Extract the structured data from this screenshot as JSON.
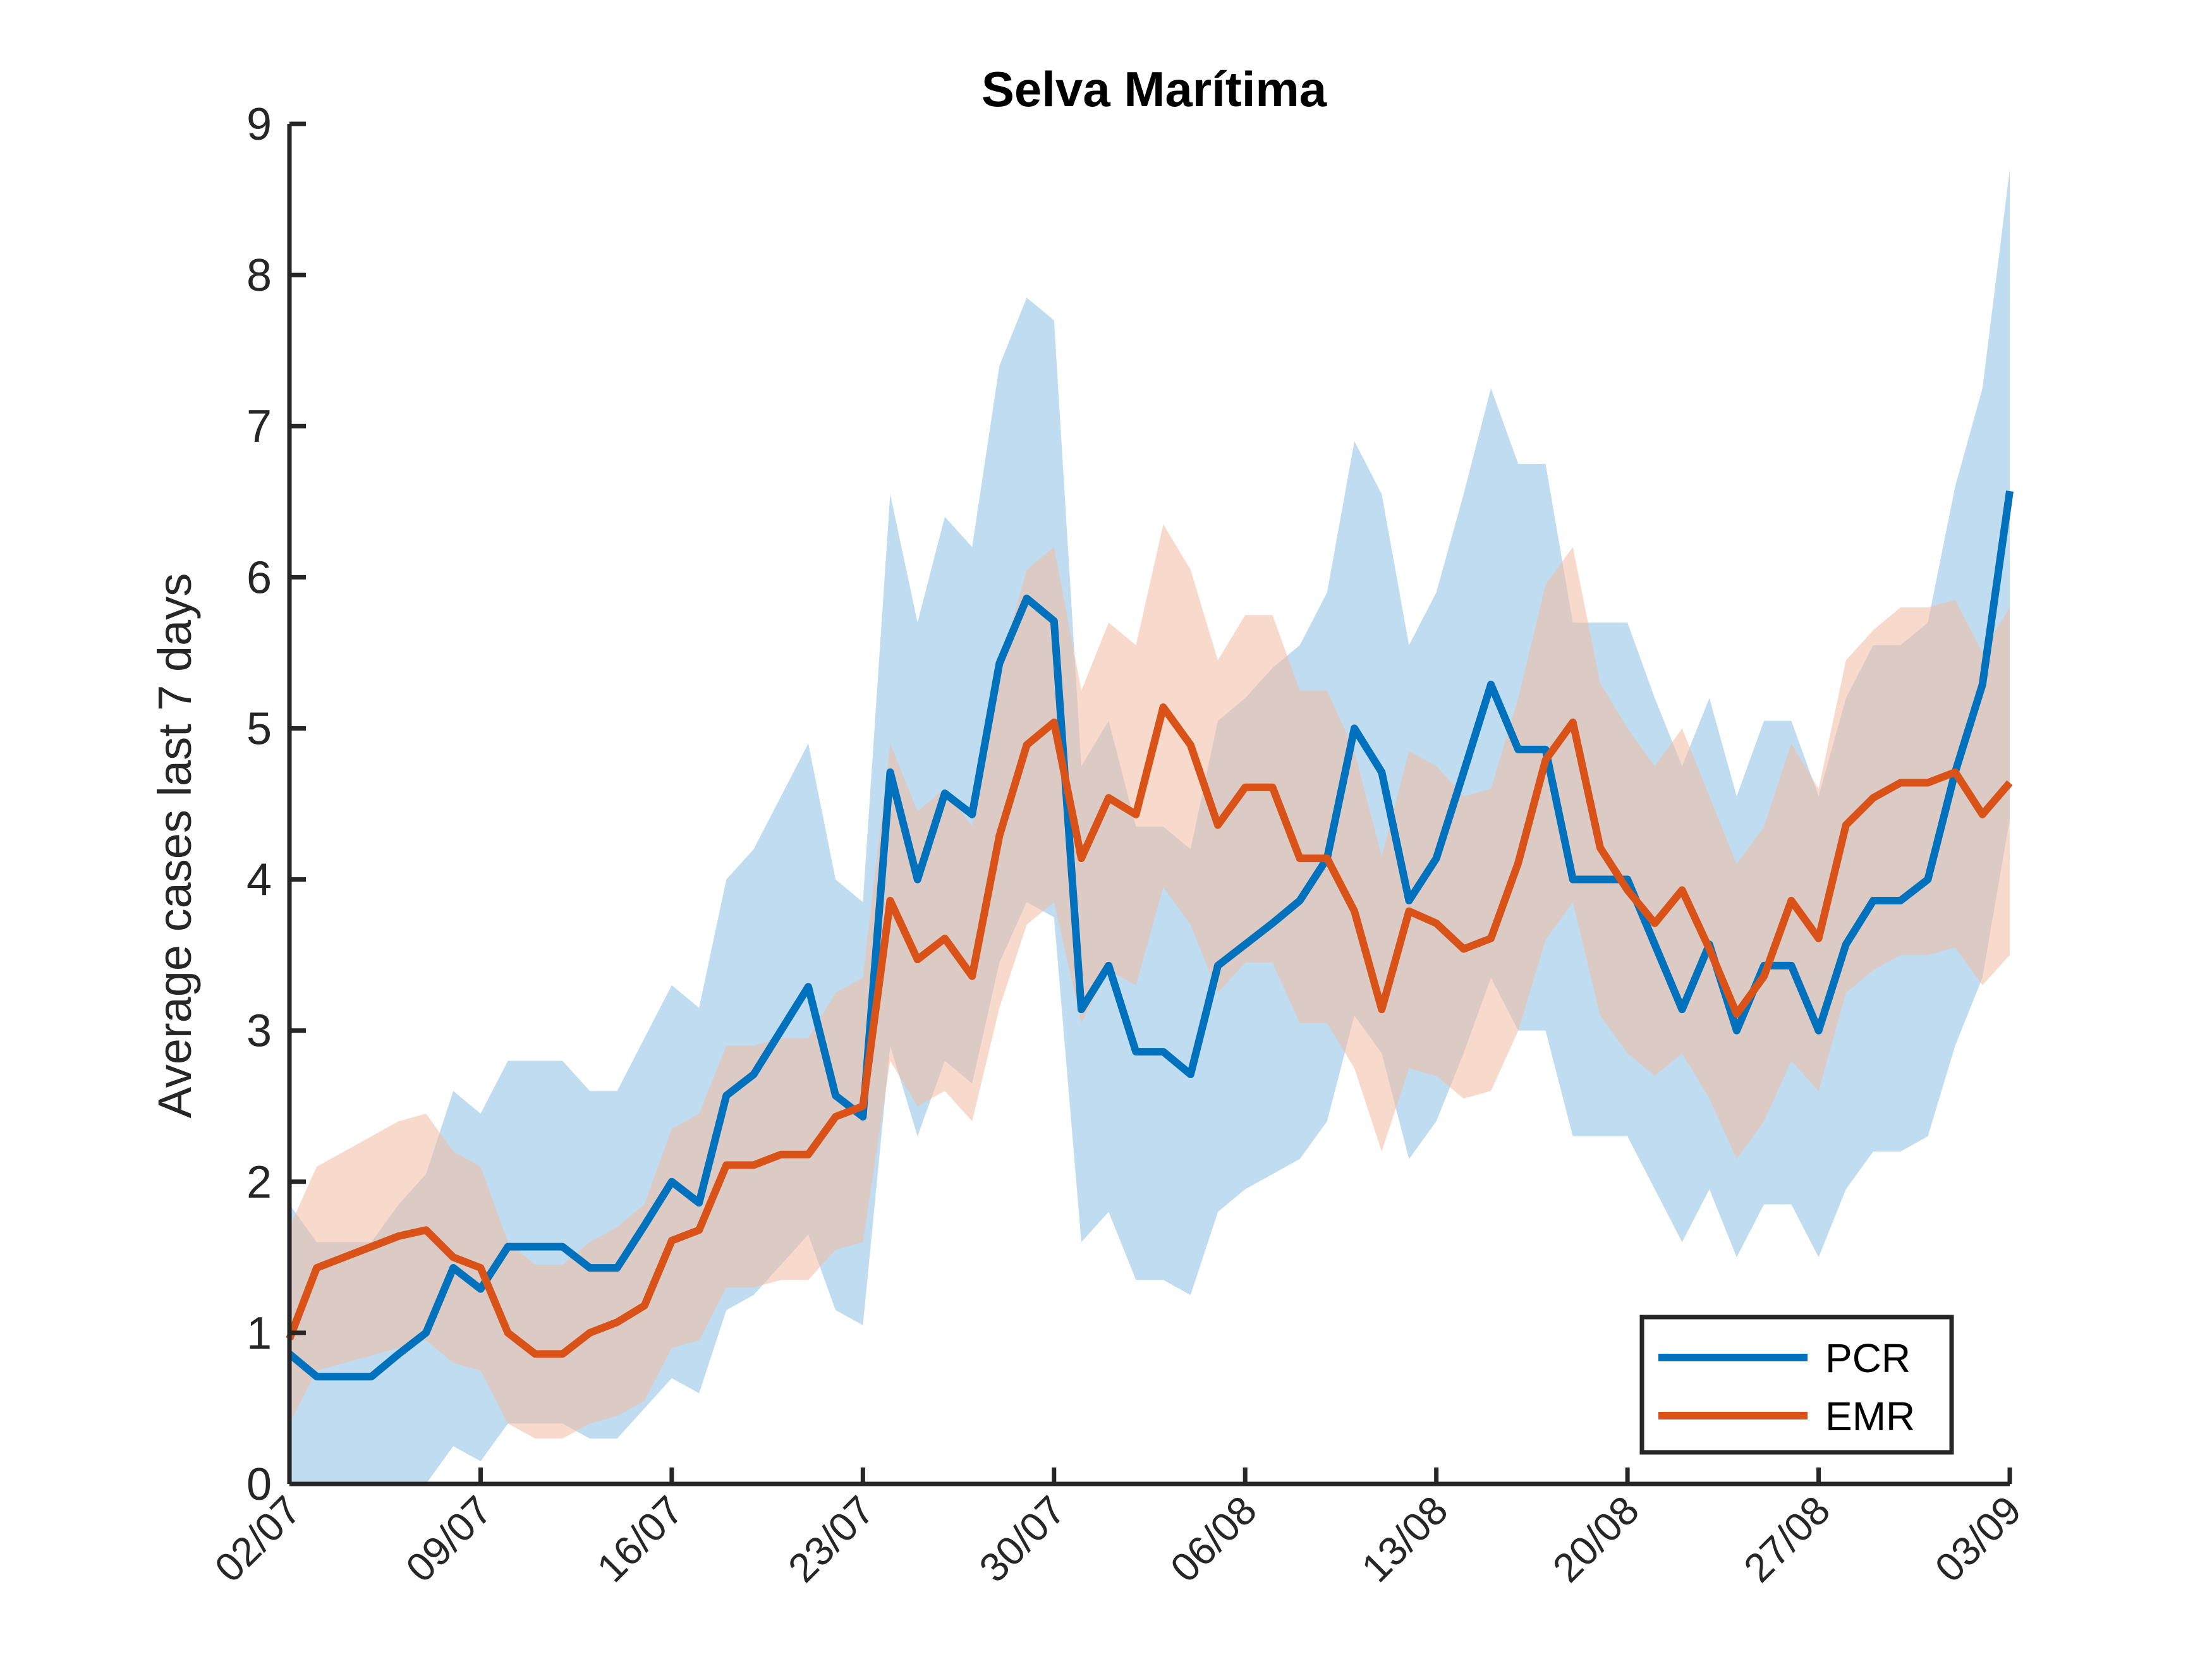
{
  "chart_data": {
    "type": "line",
    "title": "Selva Marítima",
    "xlabel": "",
    "ylabel": "Average cases last 7 days",
    "ylim": [
      0,
      9
    ],
    "yticks": [
      "0",
      "1",
      "2",
      "3",
      "4",
      "5",
      "6",
      "7",
      "8",
      "9"
    ],
    "x_range_days": [
      0,
      63
    ],
    "xticks": [
      {
        "label": "02/07",
        "day": 0
      },
      {
        "label": "09/07",
        "day": 7
      },
      {
        "label": "16/07",
        "day": 14
      },
      {
        "label": "23/07",
        "day": 21
      },
      {
        "label": "30/07",
        "day": 28
      },
      {
        "label": "06/08",
        "day": 35
      },
      {
        "label": "13/08",
        "day": 42
      },
      {
        "label": "20/08",
        "day": 49
      },
      {
        "label": "27/08",
        "day": 56
      },
      {
        "label": "03/09",
        "day": 63
      }
    ],
    "legend_position": "bottom-right",
    "grid": false,
    "series": [
      {
        "name": "PCR",
        "color": "#0072BD",
        "band_color": "#8DC0E3",
        "x": [
          0,
          1,
          2,
          3,
          4,
          5,
          6,
          7,
          8,
          9,
          10,
          11,
          12,
          13,
          14,
          15,
          16,
          17,
          18,
          19,
          20,
          21,
          22,
          23,
          24,
          25,
          26,
          27,
          28,
          29,
          30,
          31,
          32,
          33,
          34,
          35,
          36,
          37,
          38,
          39,
          40,
          41,
          42,
          43,
          44,
          45,
          46,
          47,
          48,
          49,
          50,
          51,
          52,
          53,
          54,
          55,
          56,
          57,
          58,
          59,
          60,
          61,
          62,
          63
        ],
        "values": [
          0.86,
          0.71,
          0.71,
          0.71,
          0.86,
          1.0,
          1.43,
          1.29,
          1.57,
          1.57,
          1.57,
          1.43,
          1.43,
          1.71,
          2.0,
          1.86,
          2.57,
          2.71,
          3.0,
          3.29,
          2.57,
          2.43,
          4.71,
          4.0,
          4.57,
          4.43,
          5.43,
          5.86,
          5.71,
          3.14,
          3.43,
          2.86,
          2.86,
          2.71,
          3.43,
          3.57,
          3.71,
          3.86,
          4.14,
          5.0,
          4.71,
          3.86,
          4.14,
          4.71,
          5.29,
          4.86,
          4.86,
          4.0,
          4.0,
          4.0,
          3.57,
          3.14,
          3.57,
          3.0,
          3.43,
          3.43,
          3.0,
          3.57,
          3.86,
          3.86,
          4.0,
          4.71,
          5.29,
          6.57
        ],
        "lower": [
          0.0,
          0.0,
          0.0,
          0.0,
          0.0,
          0.0,
          0.25,
          0.15,
          0.4,
          0.4,
          0.4,
          0.3,
          0.3,
          0.5,
          0.7,
          0.6,
          1.15,
          1.25,
          1.45,
          1.65,
          1.15,
          1.05,
          2.9,
          2.3,
          2.8,
          2.65,
          3.45,
          3.85,
          3.75,
          1.6,
          1.8,
          1.35,
          1.35,
          1.25,
          1.8,
          1.95,
          2.05,
          2.15,
          2.4,
          3.1,
          2.85,
          2.15,
          2.4,
          2.85,
          3.35,
          3.0,
          3.0,
          2.3,
          2.3,
          2.3,
          1.95,
          1.6,
          1.95,
          1.5,
          1.85,
          1.85,
          1.5,
          1.95,
          2.2,
          2.2,
          2.3,
          2.9,
          3.35,
          4.4
        ],
        "upper": [
          1.85,
          1.6,
          1.6,
          1.6,
          1.85,
          2.05,
          2.6,
          2.45,
          2.8,
          2.8,
          2.8,
          2.6,
          2.6,
          2.95,
          3.3,
          3.15,
          4.0,
          4.2,
          4.55,
          4.9,
          4.0,
          3.85,
          6.55,
          5.7,
          6.4,
          6.2,
          7.4,
          7.85,
          7.7,
          4.75,
          5.05,
          4.35,
          4.35,
          4.2,
          5.05,
          5.2,
          5.4,
          5.55,
          5.9,
          6.9,
          6.55,
          5.55,
          5.9,
          6.55,
          7.25,
          6.75,
          6.75,
          5.7,
          5.7,
          5.7,
          5.2,
          4.75,
          5.2,
          4.55,
          5.05,
          5.05,
          4.55,
          5.2,
          5.55,
          5.55,
          5.7,
          6.6,
          7.25,
          8.7
        ]
      },
      {
        "name": "EMR",
        "color": "#D95319",
        "band_color": "#F2BBA3",
        "x": [
          0,
          1,
          2,
          3,
          4,
          5,
          6,
          7,
          8,
          9,
          10,
          11,
          12,
          13,
          14,
          15,
          16,
          17,
          18,
          19,
          20,
          21,
          22,
          23,
          24,
          25,
          26,
          27,
          28,
          29,
          30,
          31,
          32,
          33,
          34,
          35,
          36,
          37,
          38,
          39,
          40,
          41,
          42,
          43,
          44,
          45,
          46,
          47,
          48,
          49,
          50,
          51,
          52,
          53,
          54,
          55,
          56,
          57,
          58,
          59,
          60,
          61,
          62,
          63
        ],
        "values": [
          0.96,
          1.43,
          1.5,
          1.57,
          1.64,
          1.68,
          1.5,
          1.43,
          1.0,
          0.86,
          0.86,
          1.0,
          1.07,
          1.18,
          1.61,
          1.68,
          2.11,
          2.11,
          2.18,
          2.18,
          2.43,
          2.5,
          3.86,
          3.47,
          3.61,
          3.36,
          4.29,
          4.89,
          5.04,
          4.14,
          4.54,
          4.43,
          5.14,
          4.89,
          4.36,
          4.61,
          4.61,
          4.14,
          4.14,
          3.79,
          3.14,
          3.79,
          3.71,
          3.54,
          3.61,
          4.11,
          4.79,
          5.04,
          4.21,
          3.93,
          3.71,
          3.93,
          3.54,
          3.11,
          3.36,
          3.86,
          3.61,
          4.36,
          4.54,
          4.64,
          4.64,
          4.71,
          4.43,
          4.64
        ],
        "lower": [
          0.4,
          0.75,
          0.8,
          0.85,
          0.9,
          0.95,
          0.8,
          0.75,
          0.4,
          0.3,
          0.3,
          0.4,
          0.45,
          0.55,
          0.9,
          0.95,
          1.3,
          1.3,
          1.35,
          1.35,
          1.55,
          1.6,
          2.8,
          2.5,
          2.6,
          2.4,
          3.15,
          3.7,
          3.85,
          3.05,
          3.4,
          3.3,
          3.95,
          3.7,
          3.25,
          3.45,
          3.45,
          3.05,
          3.05,
          2.75,
          2.2,
          2.75,
          2.7,
          2.55,
          2.6,
          3.0,
          3.6,
          3.85,
          3.1,
          2.85,
          2.7,
          2.85,
          2.55,
          2.15,
          2.4,
          2.8,
          2.6,
          3.25,
          3.4,
          3.5,
          3.5,
          3.55,
          3.3,
          3.5
        ],
        "upper": [
          1.7,
          2.1,
          2.2,
          2.3,
          2.4,
          2.45,
          2.2,
          2.1,
          1.6,
          1.45,
          1.45,
          1.6,
          1.7,
          1.85,
          2.35,
          2.45,
          2.9,
          2.9,
          2.95,
          2.95,
          3.25,
          3.35,
          4.9,
          4.45,
          4.6,
          4.35,
          5.4,
          6.05,
          6.2,
          5.25,
          5.7,
          5.55,
          6.35,
          6.05,
          5.45,
          5.75,
          5.75,
          5.25,
          5.25,
          4.85,
          4.15,
          4.85,
          4.75,
          4.55,
          4.6,
          5.2,
          5.95,
          6.2,
          5.3,
          5.0,
          4.75,
          5.0,
          4.55,
          4.1,
          4.35,
          4.9,
          4.6,
          5.45,
          5.65,
          5.8,
          5.8,
          5.85,
          5.5,
          5.8
        ]
      }
    ]
  }
}
